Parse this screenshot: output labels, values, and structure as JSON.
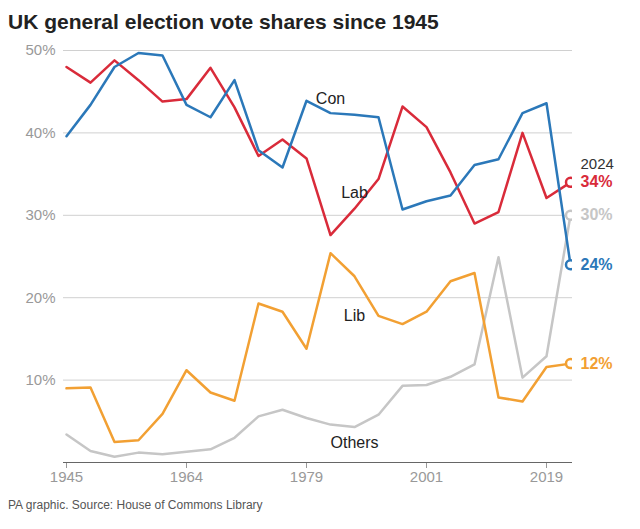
{
  "chart_data": {
    "type": "line",
    "title": "UK general election vote shares since 1945",
    "caption": "PA graphic. Source: House of Commons Library",
    "annotations": [
      {
        "text": "2024"
      }
    ],
    "categories": [
      "1945",
      null,
      null,
      null,
      null,
      "1964",
      null,
      null,
      null,
      null,
      "1979",
      null,
      null,
      null,
      null,
      "2001",
      null,
      null,
      null,
      null,
      "2019",
      null
    ],
    "series": [
      {
        "name": "Con",
        "color": "#2b78b9",
        "values": [
          39.6,
          43.4,
          48.0,
          49.7,
          49.4,
          43.4,
          41.9,
          46.4,
          37.9,
          35.8,
          43.9,
          42.4,
          42.2,
          41.9,
          30.7,
          31.7,
          32.4,
          36.1,
          36.8,
          42.4,
          43.6,
          24
        ],
        "value_labels": [
          null,
          null,
          null,
          null,
          null,
          null,
          null,
          null,
          null,
          null,
          null,
          null,
          null,
          null,
          null,
          null,
          null,
          null,
          null,
          null,
          null,
          "24%"
        ]
      },
      {
        "name": "Lab",
        "color": "#d92b3a",
        "values": [
          48.0,
          46.1,
          48.8,
          46.4,
          43.8,
          44.1,
          47.9,
          43.1,
          37.2,
          39.2,
          36.9,
          27.6,
          30.8,
          34.4,
          43.2,
          40.7,
          35.2,
          29.0,
          30.4,
          40.0,
          32.1,
          34
        ],
        "value_labels": [
          null,
          null,
          null,
          null,
          null,
          null,
          null,
          null,
          null,
          null,
          null,
          null,
          null,
          null,
          null,
          null,
          null,
          null,
          null,
          null,
          null,
          "34%"
        ]
      },
      {
        "name": "Lib",
        "color": "#f2a033",
        "values": [
          9.0,
          9.1,
          2.5,
          2.7,
          5.9,
          11.2,
          8.5,
          7.5,
          19.3,
          18.3,
          13.8,
          25.4,
          22.6,
          17.8,
          16.8,
          18.3,
          22.0,
          23.0,
          7.9,
          7.4,
          11.6,
          12
        ],
        "value_labels": [
          null,
          null,
          null,
          null,
          null,
          null,
          null,
          null,
          null,
          null,
          null,
          null,
          null,
          null,
          null,
          null,
          null,
          null,
          null,
          null,
          null,
          "12%"
        ]
      },
      {
        "name": "Others",
        "color": "#c6c6c6",
        "values": [
          3.4,
          1.4,
          0.7,
          1.2,
          1.0,
          1.3,
          1.6,
          3.0,
          5.6,
          6.4,
          5.4,
          4.6,
          4.3,
          5.8,
          9.3,
          9.4,
          10.4,
          11.9,
          24.9,
          10.3,
          12.9,
          30
        ],
        "value_labels": [
          null,
          null,
          null,
          null,
          null,
          null,
          null,
          null,
          null,
          null,
          null,
          null,
          null,
          null,
          null,
          null,
          null,
          null,
          null,
          null,
          null,
          "30%"
        ]
      }
    ],
    "ylim": [
      0,
      50
    ],
    "yticks": [
      {
        "value": 10,
        "label": "10%"
      },
      {
        "value": 20,
        "label": "20%"
      },
      {
        "value": 30,
        "label": "30%"
      },
      {
        "value": 40,
        "label": "40%"
      },
      {
        "value": 50,
        "label": "50%"
      }
    ],
    "grid": true
  }
}
